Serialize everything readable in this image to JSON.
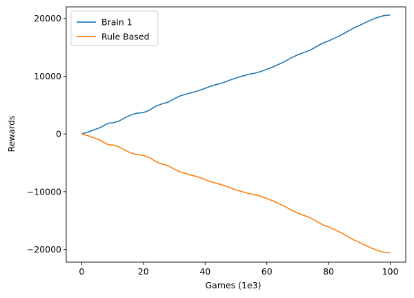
{
  "chart_data": {
    "type": "line",
    "title": "",
    "xlabel": "Games (1e3)",
    "ylabel": "Rewards",
    "xlim": [
      -5,
      105
    ],
    "ylim": [
      -22200,
      22000
    ],
    "xticks": [
      0,
      20,
      40,
      60,
      80,
      100
    ],
    "yticks": [
      -20000,
      -10000,
      0,
      10000,
      20000
    ],
    "grid": false,
    "legend_position": "upper-left",
    "series": [
      {
        "name": "Brain 1",
        "color": "#1f77b4",
        "x": [
          0,
          2,
          4,
          6,
          8,
          9,
          10,
          12,
          14,
          16,
          18,
          20,
          22,
          24,
          26,
          28,
          30,
          32,
          34,
          36,
          38,
          40,
          42,
          44,
          46,
          48,
          50,
          52,
          54,
          56,
          58,
          60,
          62,
          64,
          66,
          68,
          70,
          72,
          74,
          76,
          78,
          80,
          82,
          84,
          86,
          88,
          90,
          92,
          94,
          96,
          98,
          100
        ],
        "y": [
          0,
          300,
          700,
          1100,
          1700,
          1900,
          1900,
          2200,
          2800,
          3300,
          3600,
          3700,
          4100,
          4800,
          5200,
          5500,
          6100,
          6600,
          6900,
          7200,
          7500,
          7900,
          8300,
          8600,
          8900,
          9300,
          9700,
          10000,
          10300,
          10500,
          10800,
          11200,
          11600,
          12100,
          12600,
          13200,
          13700,
          14100,
          14500,
          15100,
          15700,
          16100,
          16600,
          17100,
          17700,
          18300,
          18800,
          19300,
          19800,
          20200,
          20500,
          20600
        ]
      },
      {
        "name": "Rule Based",
        "color": "#ff7f0e",
        "x": [
          0,
          2,
          4,
          6,
          8,
          9,
          10,
          12,
          14,
          16,
          18,
          20,
          22,
          24,
          26,
          28,
          30,
          32,
          34,
          36,
          38,
          40,
          42,
          44,
          46,
          48,
          50,
          52,
          54,
          56,
          58,
          60,
          62,
          64,
          66,
          68,
          70,
          72,
          74,
          76,
          78,
          80,
          82,
          84,
          86,
          88,
          90,
          92,
          94,
          96,
          98,
          100
        ],
        "y": [
          0,
          -300,
          -700,
          -1100,
          -1700,
          -1900,
          -1900,
          -2200,
          -2800,
          -3300,
          -3600,
          -3700,
          -4100,
          -4800,
          -5200,
          -5500,
          -6100,
          -6600,
          -6900,
          -7200,
          -7500,
          -7900,
          -8300,
          -8600,
          -8900,
          -9300,
          -9700,
          -10000,
          -10300,
          -10500,
          -10800,
          -11200,
          -11600,
          -12100,
          -12600,
          -13200,
          -13700,
          -14100,
          -14500,
          -15100,
          -15700,
          -16100,
          -16600,
          -17100,
          -17700,
          -18300,
          -18800,
          -19300,
          -19800,
          -20200,
          -20500,
          -20600
        ]
      }
    ]
  }
}
